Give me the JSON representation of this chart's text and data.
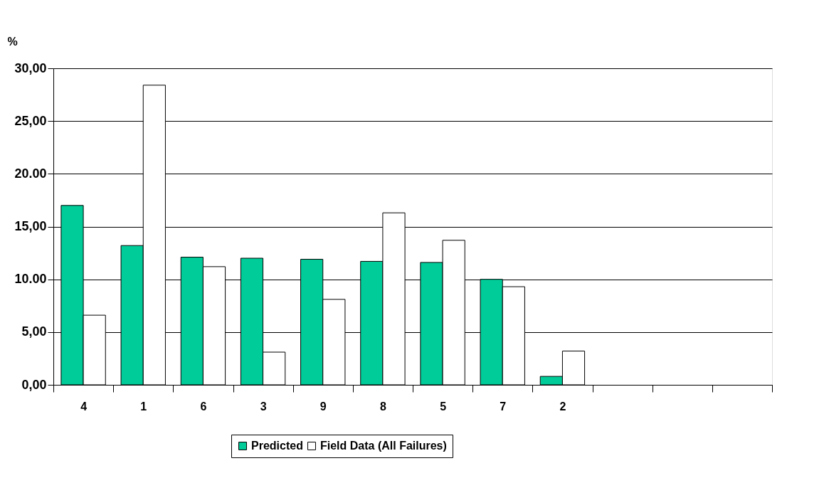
{
  "chart_data": {
    "type": "bar",
    "ylabel": "%",
    "categories": [
      "4",
      "1",
      "6",
      "3",
      "9",
      "8",
      "5",
      "7",
      "2",
      null,
      null,
      null
    ],
    "series": [
      {
        "name": "Predicted",
        "color": "#00cc99",
        "values": [
          17.0,
          13.2,
          12.1,
          12.0,
          11.9,
          11.7,
          11.6,
          10.0,
          0.8,
          null,
          null,
          null
        ]
      },
      {
        "name": "Field Data (All Failures)",
        "color": "#ffffff",
        "values": [
          6.6,
          28.4,
          11.2,
          3.1,
          8.1,
          16.3,
          13.7,
          9.3,
          3.2,
          null,
          null,
          null
        ]
      }
    ],
    "ylim": [
      0,
      30
    ],
    "yticks": [
      {
        "value": 0,
        "label": "0,00"
      },
      {
        "value": 5,
        "label": "5,00"
      },
      {
        "value": 10,
        "label": "10.00"
      },
      {
        "value": 15,
        "label": "15,00"
      },
      {
        "value": 20,
        "label": "20.00"
      },
      {
        "value": 25,
        "label": "25,00"
      },
      {
        "value": 30,
        "label": "30,00"
      }
    ],
    "grid": "y",
    "legend": "bottom"
  }
}
